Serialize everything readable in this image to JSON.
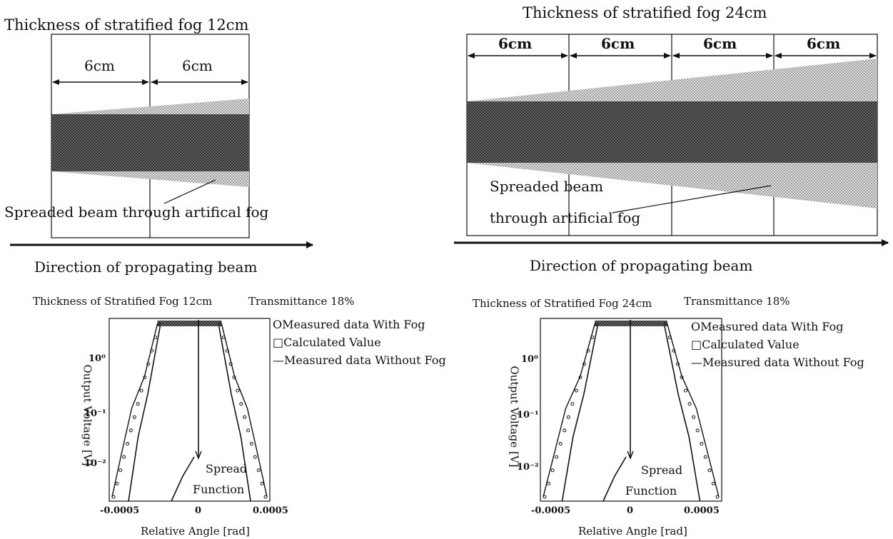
{
  "left_diagram": {
    "title": "Thickness of stratified fog 12cm",
    "segments": [
      "6cm",
      "6cm"
    ],
    "beam_label": "Spreaded beam through artifical fog",
    "direction_label": "Direction of propagating beam"
  },
  "right_diagram": {
    "title": "Thickness of stratified fog 24cm",
    "segments": [
      "6cm",
      "6cm",
      "6cm",
      "6cm"
    ],
    "beam_label_line1": "Spreaded beam",
    "beam_label_line2": "through artificial fog",
    "direction_label": "Direction of propagating beam"
  },
  "left_plot": {
    "title": "Thickness of Stratified Fog 12cm",
    "transmittance": "Transmittance 18%",
    "legend": [
      "OMeasured data With Fog",
      "□Calculated Value",
      "—Measured data Without Fog"
    ],
    "ylabel": "Output Voltage [V]",
    "xlabel": "Relative Angle [rad]",
    "yticks": [
      "10⁰",
      "10⁻¹",
      "10⁻²"
    ],
    "xticks": [
      "-0.0005",
      "0",
      "0.0005"
    ],
    "annotation_line1": "Spread",
    "annotation_line2": "Function"
  },
  "right_plot": {
    "title": "Thickness of Stratified Fog 24cm",
    "transmittance": "Transmittance 18%",
    "legend": [
      "OMeasured data With Fog",
      "□Calculated Value",
      "—Measured data Without Fog"
    ],
    "ylabel": "Output Voltage [V]",
    "xlabel": "Relative Angle [rad]",
    "yticks": [
      "10⁰",
      "10⁻¹",
      "10⁻²"
    ],
    "xticks": [
      "-0.0005",
      "0",
      "0.0005"
    ],
    "annotation_line1": "Spread",
    "annotation_line2": "Function"
  },
  "colors": {
    "ink": "#111111",
    "core_beam": "#555555",
    "spread_beam": "#bdbdbd"
  }
}
